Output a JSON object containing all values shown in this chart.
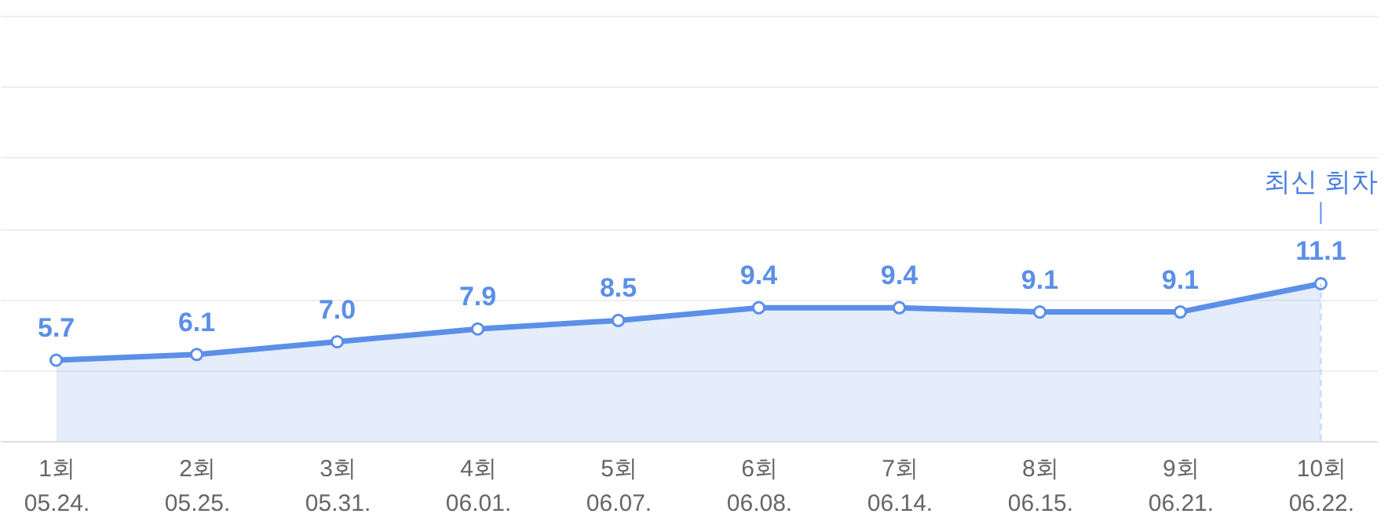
{
  "chart_data": {
    "type": "area",
    "categories": [
      "1회\n05.24.",
      "2회\n05.25.",
      "3회\n05.31.",
      "4회\n06.01.",
      "5회\n06.07.",
      "6회\n06.08.",
      "7회\n06.14.",
      "8회\n06.15.",
      "9회\n06.21.",
      "10회\n06.22."
    ],
    "values": [
      5.7,
      6.1,
      7.0,
      7.9,
      8.5,
      9.4,
      9.4,
      9.1,
      9.1,
      11.1
    ],
    "value_labels": [
      "5.7",
      "6.1",
      "7.0",
      "7.9",
      "8.5",
      "9.4",
      "9.4",
      "9.1",
      "9.1",
      "11.1"
    ],
    "color": "#5b8fe8",
    "marker": "circle",
    "grid": "y",
    "tick_labels": "x",
    "ylim": [
      0,
      30
    ],
    "yticks": [
      {
        "value": 0,
        "label": null
      },
      {
        "value": 5,
        "label": null
      },
      {
        "value": 10,
        "label": null
      },
      {
        "value": 15,
        "label": null
      },
      {
        "value": 20,
        "label": null
      },
      {
        "value": 25,
        "label": null
      },
      {
        "value": 30,
        "label": null
      }
    ],
    "ref_lines": [
      {
        "axis": "x",
        "value": "10회\n06.22.",
        "color": "#cfe0f7",
        "line_style": "dashed"
      }
    ],
    "annotations": [
      "최신 회차"
    ]
  }
}
